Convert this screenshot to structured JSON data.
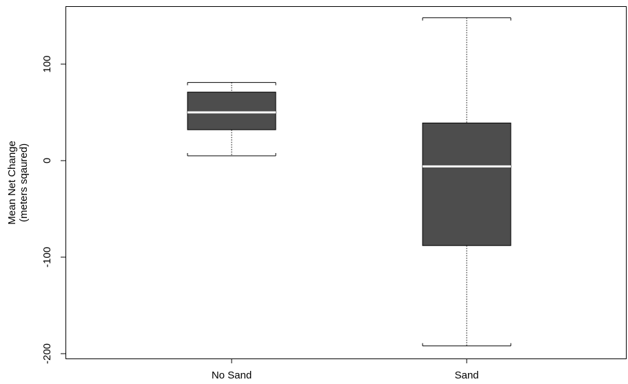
{
  "chart_data": {
    "type": "box",
    "title": "",
    "xlabel": "",
    "ylabel_lines": [
      "Mean Net Change",
      "(meters sqaured)"
    ],
    "categories": [
      "No Sand",
      "Sand"
    ],
    "boxes": [
      {
        "category": "No Sand",
        "whisker_low": 5,
        "q1": 32,
        "median": 50,
        "q3": 71,
        "whisker_high": 81
      },
      {
        "category": "Sand",
        "whisker_low": -192,
        "q1": -88,
        "median": -6,
        "q3": 39,
        "whisker_high": 148
      }
    ],
    "ylim": [
      -205,
      160
    ],
    "yticks": [
      -200,
      -100,
      0,
      100
    ],
    "ytick_labels": [
      "-200",
      "-100",
      "0",
      "100"
    ],
    "grid": false,
    "colors": {
      "box_fill": "#4d4d4d",
      "median": "#ffffff",
      "whisker": "#000000"
    }
  }
}
